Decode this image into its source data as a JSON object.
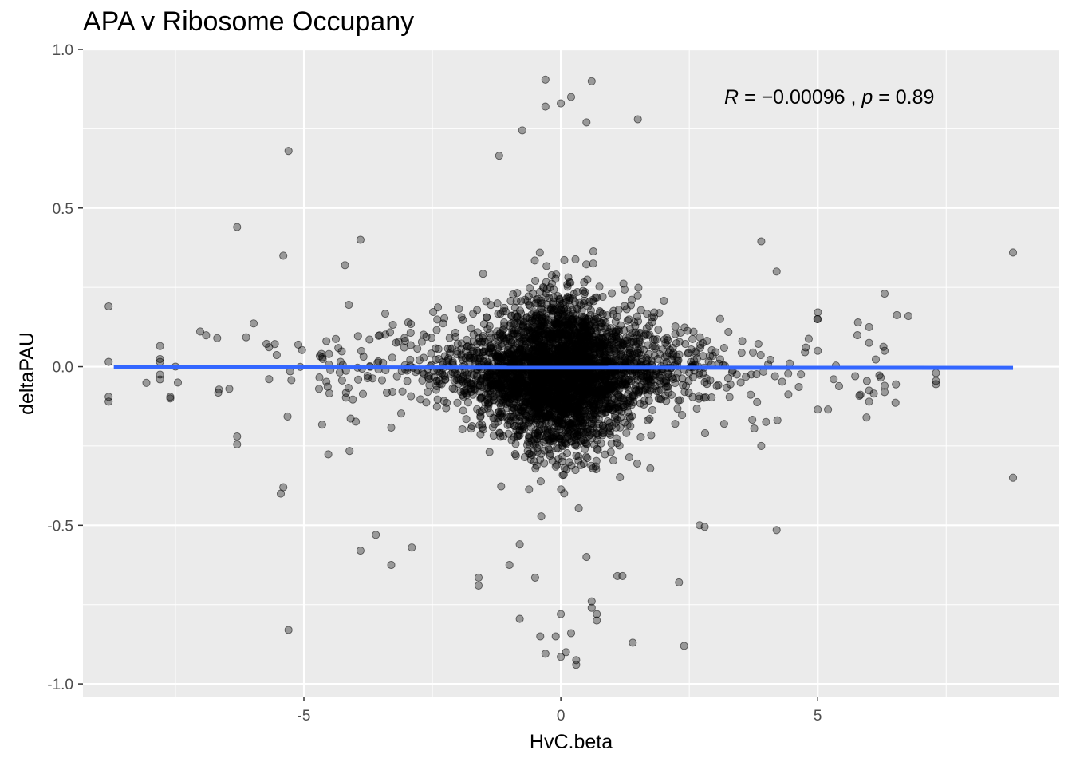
{
  "chart_data": {
    "type": "scatter",
    "title": "APA v Ribosome Occupany",
    "xlabel": "HvC.beta",
    "ylabel": "deltaPAU",
    "xlim": [
      -9.3,
      9.7
    ],
    "ylim": [
      -1.04,
      1.0
    ],
    "x_ticks": [
      -5,
      0,
      5
    ],
    "x_tick_labels": [
      "-5",
      "0",
      "5"
    ],
    "y_ticks": [
      -1.0,
      -0.5,
      0.0,
      0.5,
      1.0
    ],
    "y_tick_labels": [
      "-1.0",
      "-0.5",
      "0.0",
      "0.5",
      "1.0"
    ],
    "grid": true,
    "background": "#ebebeb",
    "point_color": "#000000",
    "point_alpha": 0.35,
    "fit_line": {
      "color": "#3366ff",
      "x": [
        -8.7,
        8.8
      ],
      "y": [
        -0.002,
        -0.004
      ]
    },
    "annotation": {
      "R_label": "R",
      "R_value": "−0.00096",
      "p_label": "p",
      "p_value": "0.89",
      "sep": " , ",
      "eq": " = "
    },
    "outliers": [
      {
        "x": -8.8,
        "y": 0.19
      },
      {
        "x": -8.8,
        "y": 0.015
      },
      {
        "x": -8.8,
        "y": -0.095
      },
      {
        "x": -8.8,
        "y": -0.11
      },
      {
        "x": -7.8,
        "y": 0.065
      },
      {
        "x": -7.8,
        "y": 0.015
      },
      {
        "x": -7.8,
        "y": -0.025
      },
      {
        "x": -7.8,
        "y": -0.04
      },
      {
        "x": -7.6,
        "y": -0.095
      },
      {
        "x": -7.6,
        "y": -0.1
      },
      {
        "x": -7.5,
        "y": 0.0
      },
      {
        "x": -6.3,
        "y": 0.44
      },
      {
        "x": -6.3,
        "y": -0.22
      },
      {
        "x": -6.3,
        "y": -0.245
      },
      {
        "x": -5.3,
        "y": 0.68
      },
      {
        "x": -5.3,
        "y": -0.83
      },
      {
        "x": -5.4,
        "y": -0.38
      },
      {
        "x": -5.45,
        "y": -0.4
      },
      {
        "x": -5.4,
        "y": 0.35
      },
      {
        "x": -4.2,
        "y": 0.32
      },
      {
        "x": -3.9,
        "y": 0.4
      },
      {
        "x": -3.9,
        "y": -0.58
      },
      {
        "x": -3.6,
        "y": -0.53
      },
      {
        "x": -3.3,
        "y": -0.625
      },
      {
        "x": -2.9,
        "y": -0.57
      },
      {
        "x": 8.8,
        "y": 0.36
      },
      {
        "x": 8.8,
        "y": -0.35
      },
      {
        "x": 7.3,
        "y": -0.02
      },
      {
        "x": 7.3,
        "y": -0.045
      },
      {
        "x": 7.3,
        "y": -0.055
      },
      {
        "x": 6.0,
        "y": 0.125
      },
      {
        "x": 6.0,
        "y": 0.075
      },
      {
        "x": 6.0,
        "y": -0.075
      },
      {
        "x": 6.0,
        "y": -0.11
      },
      {
        "x": 5.95,
        "y": -0.16
      },
      {
        "x": 6.3,
        "y": 0.23
      },
      {
        "x": 6.3,
        "y": 0.05
      },
      {
        "x": 6.3,
        "y": -0.06
      },
      {
        "x": 6.3,
        "y": -0.08
      },
      {
        "x": 5.0,
        "y": 0.15
      },
      {
        "x": 5.0,
        "y": 0.05
      },
      {
        "x": 5.0,
        "y": -0.135
      },
      {
        "x": 5.2,
        "y": -0.135
      },
      {
        "x": 4.2,
        "y": 0.3
      },
      {
        "x": 4.2,
        "y": -0.515
      },
      {
        "x": 3.9,
        "y": 0.395
      },
      {
        "x": 3.9,
        "y": -0.25
      },
      {
        "x": 2.4,
        "y": -0.88
      },
      {
        "x": 2.3,
        "y": -0.68
      },
      {
        "x": 1.5,
        "y": 0.78
      },
      {
        "x": 1.4,
        "y": -0.87
      },
      {
        "x": -0.3,
        "y": 0.905
      },
      {
        "x": 0.6,
        "y": 0.9
      },
      {
        "x": 0.2,
        "y": 0.85
      },
      {
        "x": 0.0,
        "y": 0.83
      },
      {
        "x": -0.3,
        "y": 0.82
      },
      {
        "x": 0.5,
        "y": 0.77
      },
      {
        "x": -0.75,
        "y": 0.745
      },
      {
        "x": -1.2,
        "y": 0.665
      },
      {
        "x": 0.3,
        "y": -0.94
      },
      {
        "x": 0.3,
        "y": -0.925
      },
      {
        "x": 0.1,
        "y": -0.9
      },
      {
        "x": -0.3,
        "y": -0.905
      },
      {
        "x": 0.0,
        "y": -0.915
      },
      {
        "x": -0.4,
        "y": -0.85
      },
      {
        "x": -0.1,
        "y": -0.85
      },
      {
        "x": 0.2,
        "y": -0.84
      },
      {
        "x": 0.0,
        "y": -0.78
      },
      {
        "x": 0.7,
        "y": -0.8
      },
      {
        "x": 0.7,
        "y": -0.78
      },
      {
        "x": -0.8,
        "y": -0.795
      },
      {
        "x": 1.1,
        "y": -0.66
      },
      {
        "x": 1.2,
        "y": -0.66
      },
      {
        "x": -1.6,
        "y": -0.665
      },
      {
        "x": -1.6,
        "y": -0.69
      },
      {
        "x": -1.0,
        "y": -0.625
      },
      {
        "x": -0.5,
        "y": -0.665
      },
      {
        "x": 0.6,
        "y": -0.76
      },
      {
        "x": 0.6,
        "y": -0.74
      },
      {
        "x": -0.8,
        "y": -0.56
      },
      {
        "x": 0.5,
        "y": -0.6
      },
      {
        "x": 2.7,
        "y": -0.5
      },
      {
        "x": 2.8,
        "y": -0.505
      }
    ]
  }
}
